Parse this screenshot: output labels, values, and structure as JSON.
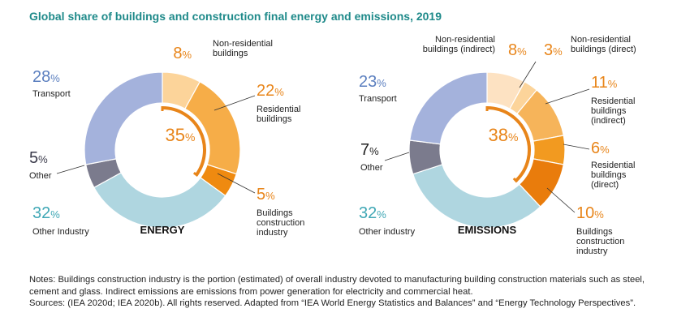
{
  "title": "Global share of buildings and construction final energy and emissions, 2019",
  "colors": {
    "title": "#1f8a8a",
    "buildings_highlight": "#e8851a",
    "transport": "#5b7fbf",
    "other": "#3a3a4a",
    "other_industry": "#3fa7b5"
  },
  "chart_data": [
    {
      "type": "pie",
      "center_label": "ENERGY",
      "buildings_total": {
        "value": 35,
        "unit": "%"
      },
      "slices": [
        {
          "name": "Non-residential buildings",
          "value": 8,
          "color": "#fcd49a",
          "label_color": "#e8851a"
        },
        {
          "name": "Residential buildings",
          "value": 22,
          "color": "#f6ad48",
          "label_color": "#e8851a"
        },
        {
          "name": "Buildings construction industry",
          "value": 5,
          "color": "#ef8a10",
          "label_color": "#e8851a"
        },
        {
          "name": "Other Industry",
          "value": 32,
          "color": "#afd6e0",
          "label_color": "#3fa7b5"
        },
        {
          "name": "Other",
          "value": 5,
          "color": "#7b7b8d",
          "label_color": "#3a3a4a"
        },
        {
          "name": "Transport",
          "value": 28,
          "color": "#a4b2dc",
          "label_color": "#5b7fbf"
        }
      ]
    },
    {
      "type": "pie",
      "center_label": "EMISSIONS",
      "buildings_total": {
        "value": 38,
        "unit": "%"
      },
      "slices": [
        {
          "name": "Non-residential buildings (indirect)",
          "value": 8,
          "color": "#fde2c2",
          "label_color": "#e8851a"
        },
        {
          "name": "Non-residential buildings (direct)",
          "value": 3,
          "color": "#fcd49a",
          "label_color": "#e8851a"
        },
        {
          "name": "Residential buildings (indirect)",
          "value": 11,
          "color": "#f6b45a",
          "label_color": "#e8851a"
        },
        {
          "name": "Residential buildings (direct)",
          "value": 6,
          "color": "#f29a20",
          "label_color": "#e8851a"
        },
        {
          "name": "Buildings construction industry",
          "value": 10,
          "color": "#e97c0c",
          "label_color": "#e8851a"
        },
        {
          "name": "Other industry",
          "value": 32,
          "color": "#afd6e0",
          "label_color": "#3fa7b5"
        },
        {
          "name": "Other",
          "value": 7,
          "color": "#7b7b8d",
          "label_color": "#222222"
        },
        {
          "name": "Transport",
          "value": 23,
          "color": "#a4b2dc",
          "label_color": "#5b7fbf"
        }
      ]
    }
  ],
  "labels": {
    "energy": [
      {
        "value": "8",
        "unit": "%",
        "lines": [
          "Non-residential",
          "buildings"
        ]
      },
      {
        "value": "22",
        "unit": "%",
        "lines": [
          "Residential",
          "buildings"
        ]
      },
      {
        "value": "5",
        "unit": "%",
        "lines": [
          "Buildings",
          "construction",
          "industry"
        ]
      },
      {
        "value": "32",
        "unit": "%",
        "lines": [
          "Other Industry"
        ]
      },
      {
        "value": "5",
        "unit": "%",
        "lines": [
          "Other"
        ]
      },
      {
        "value": "28",
        "unit": "%",
        "lines": [
          "Transport"
        ]
      }
    ],
    "emissions": [
      {
        "value": "8",
        "unit": "%",
        "lines": [
          "Non-residential",
          "buildings (indirect)"
        ]
      },
      {
        "value": "3",
        "unit": "%",
        "lines": [
          "Non-residential",
          "buildings (direct)"
        ]
      },
      {
        "value": "11",
        "unit": "%",
        "lines": [
          "Residential",
          "buildings",
          "(indirect)"
        ]
      },
      {
        "value": "6",
        "unit": "%",
        "lines": [
          "Residential",
          "buildings",
          "(direct)"
        ]
      },
      {
        "value": "10",
        "unit": "%",
        "lines": [
          "Buildings",
          "construction",
          "industry"
        ]
      },
      {
        "value": "32",
        "unit": "%",
        "lines": [
          "Other industry"
        ]
      },
      {
        "value": "7",
        "unit": "%",
        "lines": [
          "Other"
        ]
      },
      {
        "value": "23",
        "unit": "%",
        "lines": [
          "Transport"
        ]
      }
    ]
  },
  "notes": {
    "line1": "Notes: Buildings construction industry is the portion (estimated) of overall industry devoted to manufacturing building construction materials such as steel, cement and glass. Indirect emissions are emissions from power generation for electricity and commercial heat.",
    "line2": "Sources: (IEA 2020d; IEA 2020b). All rights reserved. Adapted from “IEA World Energy Statistics and Balances” and “Energy Technology Perspectives”."
  }
}
